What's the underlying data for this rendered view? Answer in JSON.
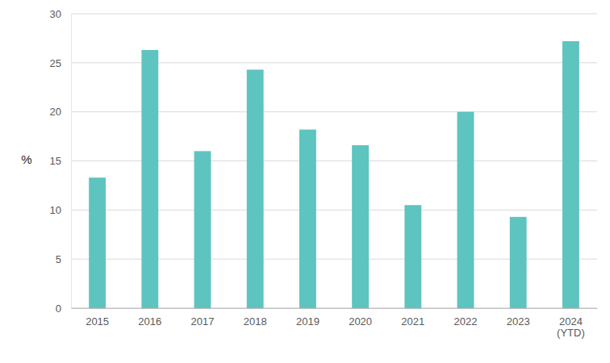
{
  "chart_data": {
    "type": "bar",
    "y_label": "%",
    "categories": [
      "2015",
      "2016",
      "2017",
      "2018",
      "2019",
      "2020",
      "2021",
      "2022",
      "2023",
      "2024 (YTD)"
    ],
    "values": [
      13.3,
      26.3,
      16.0,
      24.3,
      18.2,
      16.6,
      10.5,
      20.0,
      9.3,
      27.2
    ],
    "color": "#5ec4c0",
    "ylim": [
      0,
      30
    ],
    "yticks": [
      0,
      5,
      10,
      15,
      20,
      25,
      30
    ],
    "grid": true
  }
}
